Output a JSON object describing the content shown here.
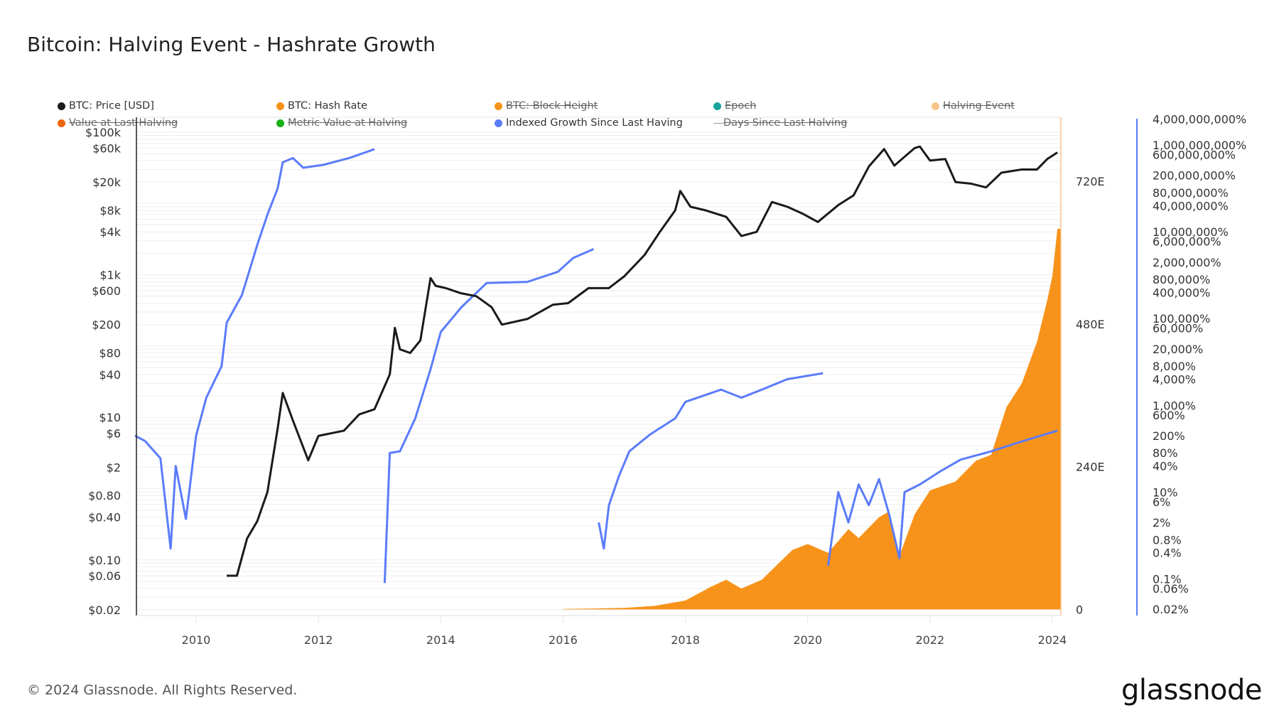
{
  "title": "Bitcoin: Halving Event - Hashrate Growth",
  "footer": "© 2024 Glassnode. All Rights Reserved.",
  "logo": "glassnode",
  "legend": [
    {
      "label": "BTC: Price [USD]",
      "color": "#1a1a1a",
      "enabled": true
    },
    {
      "label": "BTC: Hash Rate",
      "color": "#f7931a",
      "enabled": true
    },
    {
      "label": "BTC: Block Height",
      "color": "#f7931a",
      "enabled": false
    },
    {
      "label": "Epoch",
      "color": "#1aa39a",
      "enabled": false
    },
    {
      "label": "Halving Event",
      "color": "#f8c48a",
      "enabled": false
    },
    {
      "label": "Value at Last Halving",
      "color": "#f0640f",
      "enabled": false
    },
    {
      "label": "Metric Value at Halving",
      "color": "#19b219",
      "enabled": false
    },
    {
      "label": "Indexed Growth Since Last Having",
      "color": "#5b7cfa",
      "enabled": true
    },
    {
      "label": "Days Since Last Halving",
      "color": "#999999",
      "enabled": false,
      "line": true
    }
  ],
  "chart_data": {
    "type": "line",
    "title": "Bitcoin: Halving Event - Hashrate Growth",
    "x_range": [
      "2009-01",
      "2024-02"
    ],
    "x_ticks": [
      "2010",
      "2012",
      "2014",
      "2016",
      "2018",
      "2020",
      "2022",
      "2024"
    ],
    "grid": true,
    "legend_position": "top",
    "axes": {
      "price": {
        "scale": "log",
        "range": [
          0.016,
          160000
        ],
        "position": "left",
        "ticks": [
          [
            100000,
            "$100k"
          ],
          [
            60000,
            "$60k"
          ],
          [
            20000,
            "$20k"
          ],
          [
            8000,
            "$8k"
          ],
          [
            4000,
            "$4k"
          ],
          [
            1000,
            "$1k"
          ],
          [
            600,
            "$600"
          ],
          [
            200,
            "$200"
          ],
          [
            80,
            "$80"
          ],
          [
            40,
            "$40"
          ],
          [
            10,
            "$10"
          ],
          [
            6,
            "$6"
          ],
          [
            2,
            "$2"
          ],
          [
            0.8,
            "$0.80"
          ],
          [
            0.4,
            "$0.40"
          ],
          [
            0.1,
            "$0.10"
          ],
          [
            0.06,
            "$0.06"
          ],
          [
            0.02,
            "$0.02"
          ]
        ]
      },
      "hash_rate": {
        "scale": "linear",
        "unit": "EH/s",
        "position": "right-inner",
        "ticks": [
          [
            0,
            "0"
          ],
          [
            240,
            "240E"
          ],
          [
            480,
            "480E"
          ],
          [
            720,
            "720E"
          ]
        ]
      },
      "indexed_growth": {
        "scale": "log",
        "unit": "%",
        "position": "right-outer",
        "ticks": [
          [
            4000000000,
            "4,000,000,000%"
          ],
          [
            1000000000,
            "1,000,000,000%"
          ],
          [
            600000000,
            "600,000,000%"
          ],
          [
            200000000,
            "200,000,000%"
          ],
          [
            80000000,
            "80,000,000%"
          ],
          [
            40000000,
            "40,000,000%"
          ],
          [
            10000000,
            "10,000,000%"
          ],
          [
            6000000,
            "6,000,000%"
          ],
          [
            2000000,
            "2,000,000%"
          ],
          [
            800000,
            "800,000%"
          ],
          [
            400000,
            "400,000%"
          ],
          [
            100000,
            "100,000%"
          ],
          [
            60000,
            "60,000%"
          ],
          [
            20000,
            "20,000%"
          ],
          [
            8000,
            "8,000%"
          ],
          [
            4000,
            "4,000%"
          ],
          [
            1000,
            "1,000%"
          ],
          [
            600,
            "600%"
          ],
          [
            200,
            "200%"
          ],
          [
            80,
            "80%"
          ],
          [
            40,
            "40%"
          ],
          [
            10,
            "10%"
          ],
          [
            6,
            "6%"
          ],
          [
            2,
            "2%"
          ],
          [
            0.8,
            "0.8%"
          ],
          [
            0.4,
            "0.4%"
          ],
          [
            0.1,
            "0.1%"
          ],
          [
            0.06,
            "0.06%"
          ],
          [
            0.02,
            "0.02%"
          ]
        ]
      }
    },
    "series": [
      {
        "name": "BTC: Price [USD]",
        "axis": "price",
        "color": "#1a1a1a",
        "type": "line",
        "points": [
          [
            "2010-07",
            0.06
          ],
          [
            "2010-09",
            0.06
          ],
          [
            "2010-11",
            0.2
          ],
          [
            "2011-01",
            0.35
          ],
          [
            "2011-03",
            0.9
          ],
          [
            "2011-05",
            7
          ],
          [
            "2011-06",
            22
          ],
          [
            "2011-08",
            9
          ],
          [
            "2011-11",
            2.5
          ],
          [
            "2012-01",
            5.5
          ],
          [
            "2012-06",
            6.5
          ],
          [
            "2012-09",
            11
          ],
          [
            "2012-12",
            13
          ],
          [
            "2013-03",
            40
          ],
          [
            "2013-04",
            180
          ],
          [
            "2013-05",
            90
          ],
          [
            "2013-07",
            80
          ],
          [
            "2013-09",
            120
          ],
          [
            "2013-11",
            900
          ],
          [
            "2013-12",
            700
          ],
          [
            "2014-02",
            650
          ],
          [
            "2014-05",
            550
          ],
          [
            "2014-08",
            500
          ],
          [
            "2014-11",
            350
          ],
          [
            "2015-01",
            200
          ],
          [
            "2015-06",
            240
          ],
          [
            "2015-11",
            380
          ],
          [
            "2016-02",
            400
          ],
          [
            "2016-06",
            650
          ],
          [
            "2016-10",
            650
          ],
          [
            "2017-01",
            950
          ],
          [
            "2017-05",
            1900
          ],
          [
            "2017-08",
            4000
          ],
          [
            "2017-11",
            8000
          ],
          [
            "2017-12",
            15000
          ],
          [
            "2018-02",
            9000
          ],
          [
            "2018-05",
            8000
          ],
          [
            "2018-09",
            6500
          ],
          [
            "2018-12",
            3500
          ],
          [
            "2019-03",
            4000
          ],
          [
            "2019-06",
            10500
          ],
          [
            "2019-09",
            9000
          ],
          [
            "2019-12",
            7200
          ],
          [
            "2020-03",
            5500
          ],
          [
            "2020-07",
            9500
          ],
          [
            "2020-10",
            13000
          ],
          [
            "2021-01",
            33000
          ],
          [
            "2021-04",
            58000
          ],
          [
            "2021-06",
            34000
          ],
          [
            "2021-10",
            60000
          ],
          [
            "2021-11",
            63000
          ],
          [
            "2022-01",
            40000
          ],
          [
            "2022-04",
            42000
          ],
          [
            "2022-06",
            20000
          ],
          [
            "2022-09",
            19000
          ],
          [
            "2022-12",
            16800
          ],
          [
            "2023-03",
            27000
          ],
          [
            "2023-07",
            30000
          ],
          [
            "2023-10",
            30000
          ],
          [
            "2023-12",
            42000
          ],
          [
            "2024-02",
            52000
          ]
        ]
      },
      {
        "name": "BTC: Hash Rate",
        "axis": "hash_rate",
        "color": "#f7931a",
        "type": "area",
        "points": [
          [
            "2016-01",
            0.8
          ],
          [
            "2016-07",
            1.5
          ],
          [
            "2017-01",
            2.5
          ],
          [
            "2017-07",
            6
          ],
          [
            "2018-01",
            15
          ],
          [
            "2018-06",
            38
          ],
          [
            "2018-09",
            50
          ],
          [
            "2018-12",
            35
          ],
          [
            "2019-04",
            50
          ],
          [
            "2019-07",
            75
          ],
          [
            "2019-10",
            100
          ],
          [
            "2020-01",
            110
          ],
          [
            "2020-05",
            95
          ],
          [
            "2020-09",
            135
          ],
          [
            "2020-11",
            120
          ],
          [
            "2021-03",
            155
          ],
          [
            "2021-05",
            165
          ],
          [
            "2021-07",
            90
          ],
          [
            "2021-10",
            160
          ],
          [
            "2022-01",
            200
          ],
          [
            "2022-06",
            215
          ],
          [
            "2022-10",
            250
          ],
          [
            "2023-01",
            260
          ],
          [
            "2023-04",
            340
          ],
          [
            "2023-07",
            380
          ],
          [
            "2023-10",
            450
          ],
          [
            "2023-12",
            520
          ],
          [
            "2024-01",
            560
          ],
          [
            "2024-02",
            640
          ]
        ]
      },
      {
        "name": "Indexed Growth Since Last Having",
        "axis": "indexed_growth",
        "color": "#5b7cfa",
        "type": "line",
        "segments": [
          [
            [
              "2009-01",
              200
            ],
            [
              "2009-03",
              150
            ],
            [
              "2009-06",
              60
            ],
            [
              "2009-08",
              0.5
            ],
            [
              "2009-09",
              40
            ],
            [
              "2009-11",
              2.4
            ],
            [
              "2010-01",
              200
            ],
            [
              "2010-03",
              1500
            ],
            [
              "2010-06",
              8000
            ],
            [
              "2010-07",
              80000
            ],
            [
              "2010-10",
              350000
            ],
            [
              "2011-01",
              5000000
            ],
            [
              "2011-03",
              25000000
            ],
            [
              "2011-05",
              100000000
            ],
            [
              "2011-06",
              400000000
            ],
            [
              "2011-08",
              500000000
            ],
            [
              "2011-10",
              300000000
            ],
            [
              "2012-02",
              350000000
            ],
            [
              "2012-07",
              500000000
            ],
            [
              "2012-12",
              800000000
            ]
          ],
          [
            [
              "2013-02",
              0.08
            ],
            [
              "2013-03",
              80
            ],
            [
              "2013-05",
              87
            ],
            [
              "2013-08",
              500
            ],
            [
              "2013-11",
              6800
            ],
            [
              "2014-01",
              49000
            ],
            [
              "2014-05",
              180000
            ],
            [
              "2014-10",
              660000
            ],
            [
              "2015-06",
              700000
            ],
            [
              "2015-12",
              1200000
            ],
            [
              "2016-03",
              2500000
            ],
            [
              "2016-07",
              4000000
            ]
          ],
          [
            [
              "2016-08",
              2
            ],
            [
              "2016-09",
              0.5
            ],
            [
              "2016-10",
              5
            ],
            [
              "2016-12",
              24
            ],
            [
              "2017-02",
              87
            ],
            [
              "2017-06",
              210
            ],
            [
              "2017-11",
              500
            ],
            [
              "2018-01",
              1200
            ],
            [
              "2018-08",
              2300
            ],
            [
              "2018-12",
              1500
            ],
            [
              "2019-04",
              2300
            ],
            [
              "2019-09",
              4000
            ],
            [
              "2020-04",
              5500
            ]
          ],
          [
            [
              "2020-05",
              0.2
            ],
            [
              "2020-07",
              10
            ],
            [
              "2020-09",
              2
            ],
            [
              "2020-11",
              15
            ],
            [
              "2021-01",
              5
            ],
            [
              "2021-03",
              20
            ],
            [
              "2021-05",
              3
            ],
            [
              "2021-07",
              0.3
            ],
            [
              "2021-08",
              10
            ],
            [
              "2021-11",
              15
            ],
            [
              "2022-03",
              30
            ],
            [
              "2022-07",
              56
            ],
            [
              "2023-01",
              87
            ],
            [
              "2023-06",
              135
            ],
            [
              "2024-02",
              260
            ]
          ]
        ]
      }
    ]
  }
}
